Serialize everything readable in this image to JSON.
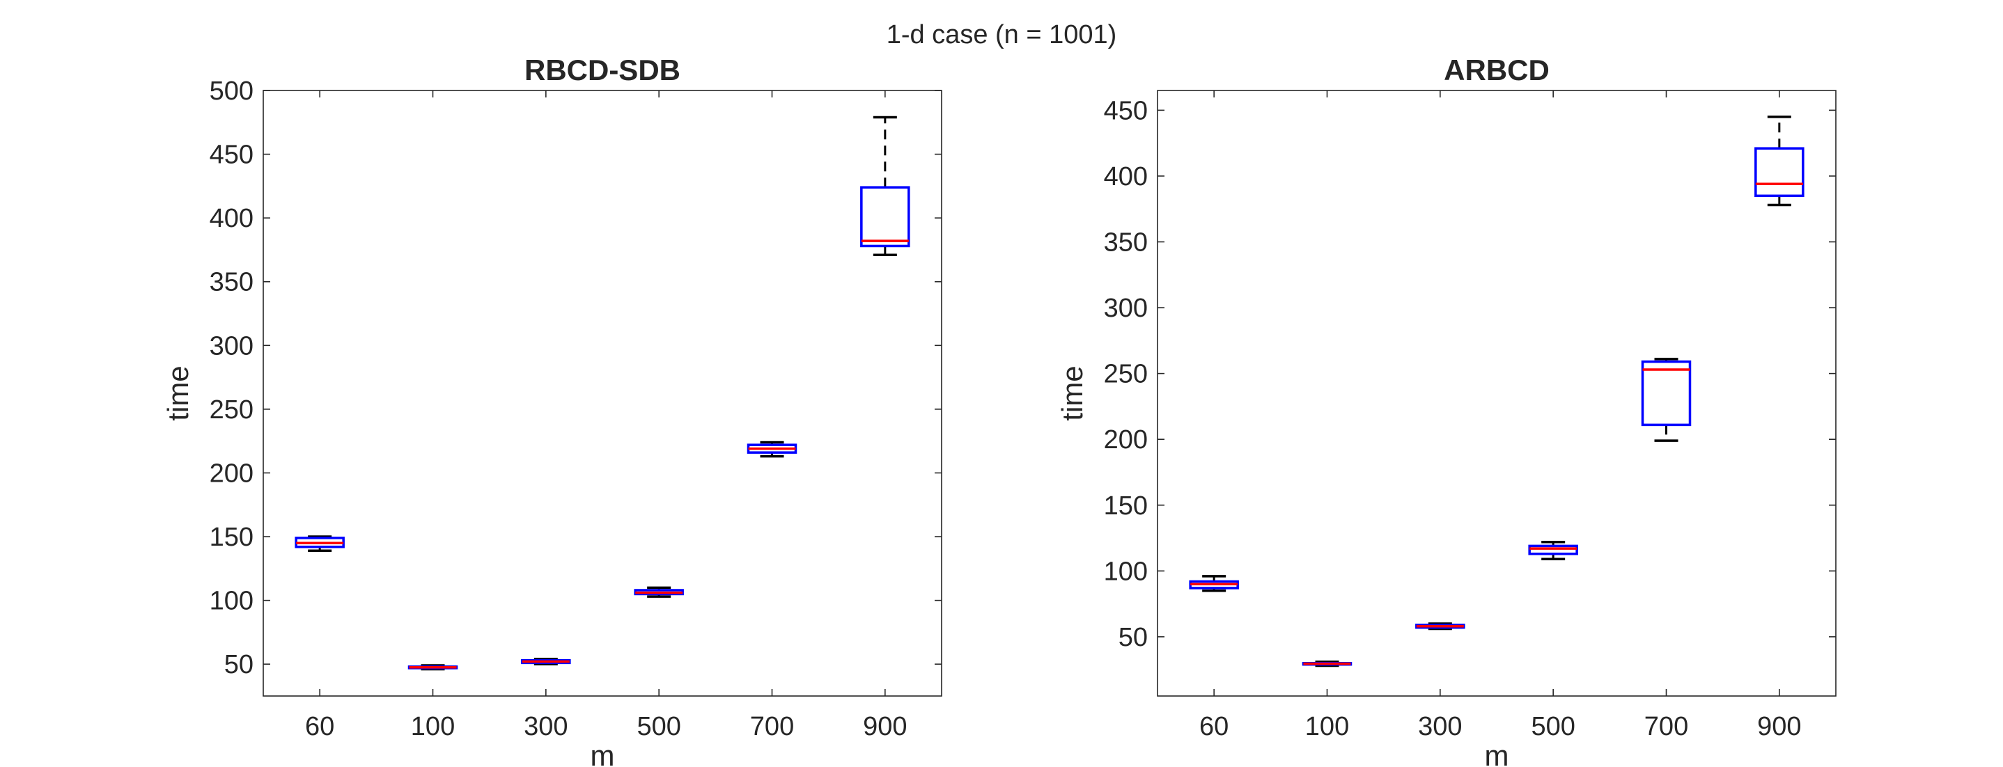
{
  "suptitle": "1-d case (n = 1001)",
  "colors": {
    "box": "#0000ff",
    "median": "#ff0000",
    "whisker": "#000000",
    "axes": "#262626"
  },
  "chart_data": [
    {
      "type": "boxplot",
      "title": "RBCD-SDB",
      "xlabel": "m",
      "ylabel": "time",
      "categories": [
        "60",
        "100",
        "300",
        "500",
        "700",
        "900"
      ],
      "ylim": [
        25,
        500
      ],
      "yticks": [
        50,
        100,
        150,
        200,
        250,
        300,
        350,
        400,
        450,
        500
      ],
      "grid": false,
      "boxes": [
        {
          "category": "60",
          "whisker_low": 139,
          "q1": 142,
          "median": 145,
          "q3": 149,
          "whisker_high": 150
        },
        {
          "category": "100",
          "whisker_low": 46,
          "q1": 47,
          "median": 47.5,
          "q3": 48,
          "whisker_high": 49
        },
        {
          "category": "300",
          "whisker_low": 50,
          "q1": 51,
          "median": 52,
          "q3": 53,
          "whisker_high": 54
        },
        {
          "category": "500",
          "whisker_low": 103,
          "q1": 105,
          "median": 106,
          "q3": 108,
          "whisker_high": 110
        },
        {
          "category": "700",
          "whisker_low": 213,
          "q1": 216,
          "median": 219,
          "q3": 222,
          "whisker_high": 224
        },
        {
          "category": "900",
          "whisker_low": 371,
          "q1": 378,
          "median": 382,
          "q3": 424,
          "whisker_high": 479
        }
      ]
    },
    {
      "type": "boxplot",
      "title": "ARBCD",
      "xlabel": "m",
      "ylabel": "time",
      "categories": [
        "60",
        "100",
        "300",
        "500",
        "700",
        "900"
      ],
      "ylim": [
        5,
        465
      ],
      "yticks": [
        50,
        100,
        150,
        200,
        250,
        300,
        350,
        400,
        450
      ],
      "grid": false,
      "boxes": [
        {
          "category": "60",
          "whisker_low": 85,
          "q1": 87,
          "median": 90,
          "q3": 92,
          "whisker_high": 96
        },
        {
          "category": "100",
          "whisker_low": 28,
          "q1": 29,
          "median": 29.5,
          "q3": 30,
          "whisker_high": 31
        },
        {
          "category": "300",
          "whisker_low": 56,
          "q1": 57,
          "median": 58,
          "q3": 59,
          "whisker_high": 60
        },
        {
          "category": "500",
          "whisker_low": 109,
          "q1": 113,
          "median": 117,
          "q3": 119,
          "whisker_high": 122
        },
        {
          "category": "700",
          "whisker_low": 199,
          "q1": 211,
          "median": 253,
          "q3": 259,
          "whisker_high": 261
        },
        {
          "category": "900",
          "whisker_low": 378,
          "q1": 385,
          "median": 394,
          "q3": 421,
          "whisker_high": 445
        }
      ]
    }
  ]
}
